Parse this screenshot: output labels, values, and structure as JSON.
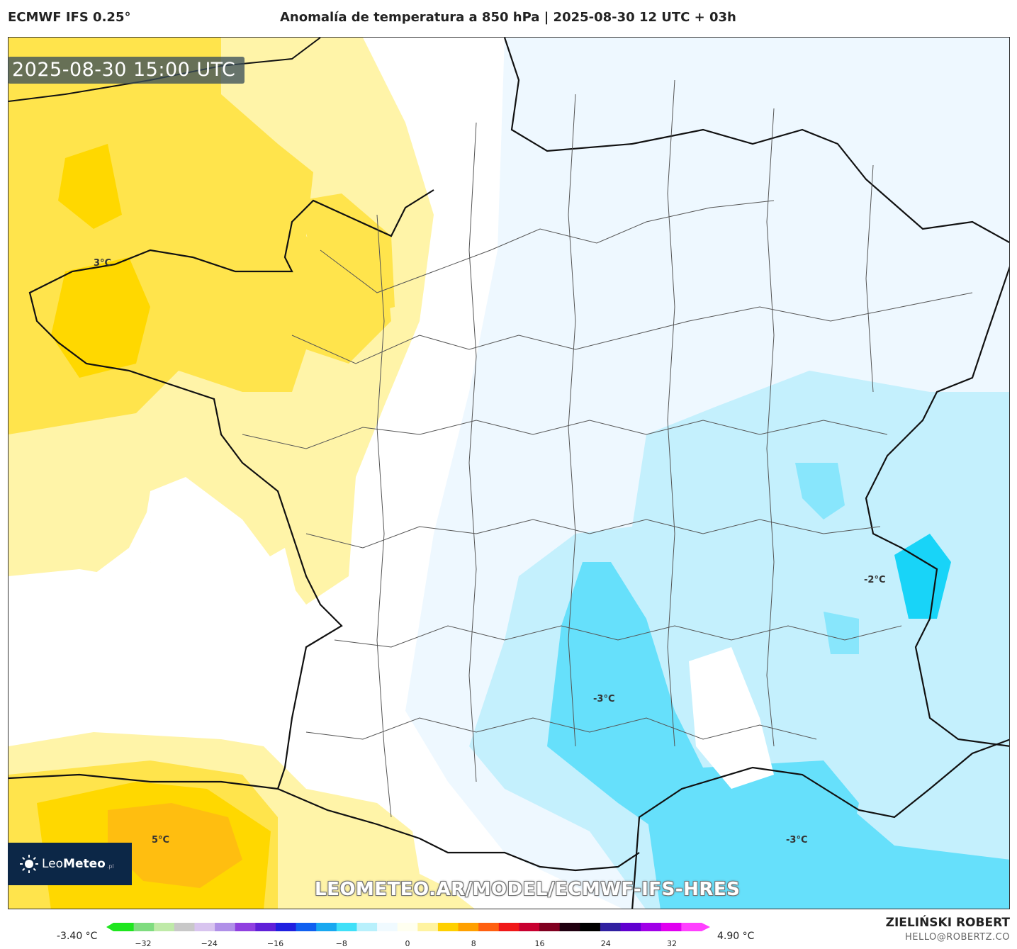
{
  "header": {
    "model": "ECMWF IFS 0.25°",
    "title": "Anomalía de temperatura a 850 hPa | 2025-08-30 12 UTC + 03h"
  },
  "map": {
    "timestamp": "2025-08-30 15:00 UTC",
    "contour_labels": [
      "3°C",
      "5°C",
      "-2°C",
      "-3°C",
      "-3°C"
    ],
    "watermark": "LEOMETEO.AR/MODEL/ECMWF-IFS-HRES"
  },
  "logo": {
    "brand_light": "Leo",
    "brand_bold": "Meteo",
    "suffix": ".pl"
  },
  "legend": {
    "min_value": "-3.40 °C",
    "max_value": "4.90 °C",
    "ticks": [
      "−32",
      "−24",
      "−16",
      "−8",
      "0",
      "8",
      "16",
      "24",
      "32"
    ],
    "colors": [
      "#1ee61e",
      "#7fdc7f",
      "#bfeaa8",
      "#c8c8c8",
      "#d8c4ef",
      "#b090e8",
      "#9040e0",
      "#6020d8",
      "#2020e0",
      "#1060f0",
      "#18a8f0",
      "#40e0f8",
      "#b8f0fc",
      "#f0faff",
      "#fffff0",
      "#fff3a0",
      "#ffd000",
      "#ffa000",
      "#ff6010",
      "#f01818",
      "#c80030",
      "#800020",
      "#200010",
      "#000000",
      "#3020a0",
      "#6000d0",
      "#a000e8",
      "#e000f0",
      "#ff40ff"
    ]
  },
  "credits": {
    "author": "ZIELIŃSKI ROBERT",
    "email": "HELLO@ROBERTZ.CO"
  }
}
